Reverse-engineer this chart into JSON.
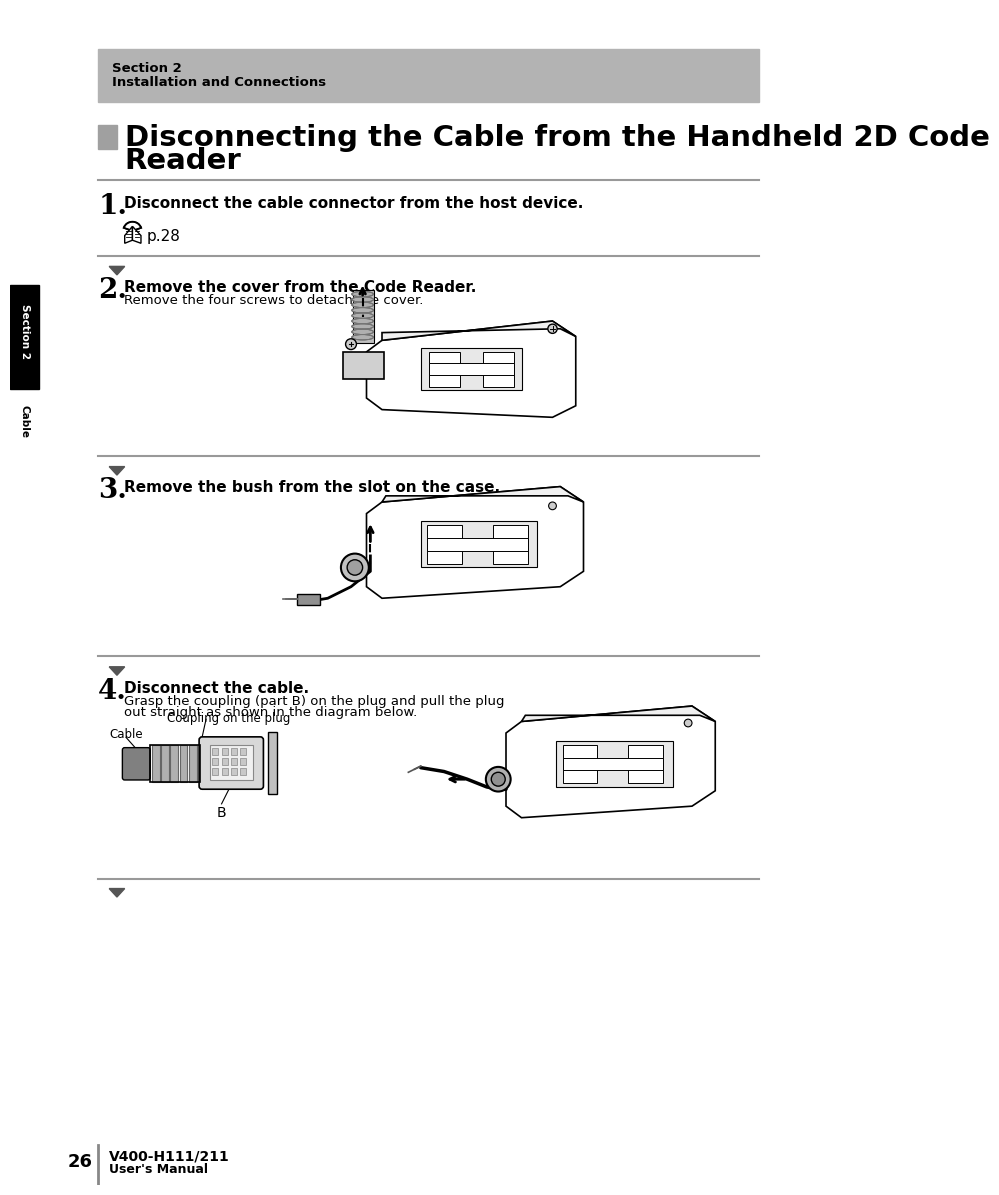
{
  "page_bg": "#ffffff",
  "header_bg": "#b3b3b3",
  "header_text1": "Section 2",
  "header_text2": "Installation and Connections",
  "title_line1": "Disconnecting the Cable from the Handheld 2D Code",
  "title_line2": "Reader",
  "title_fontsize": 21,
  "section_tab_text1": "Section 2",
  "section_tab_text2": "Cable",
  "step1_num": "1.",
  "step1_text": "Disconnect the cable connector from the host device.",
  "step1_ref": "p.28",
  "step2_num": "2.",
  "step2_text": "Remove the cover from the Code Reader.",
  "step2_sub": "Remove the four screws to detach the cover.",
  "step3_num": "3.",
  "step3_text": "Remove the bush from the slot on the case.",
  "step4_num": "4.",
  "step4_text": "Disconnect the cable.",
  "step4_sub1": "Grasp the coupling (part B) on the plug and pull the plug",
  "step4_sub2": "out straight as shown in the diagram below.",
  "label_cable": "Cable",
  "label_coupling": "Coupling on the plug",
  "label_b": "B",
  "footer_page": "26",
  "footer_model": "V400-H111/211",
  "footer_manual": "User's Manual"
}
